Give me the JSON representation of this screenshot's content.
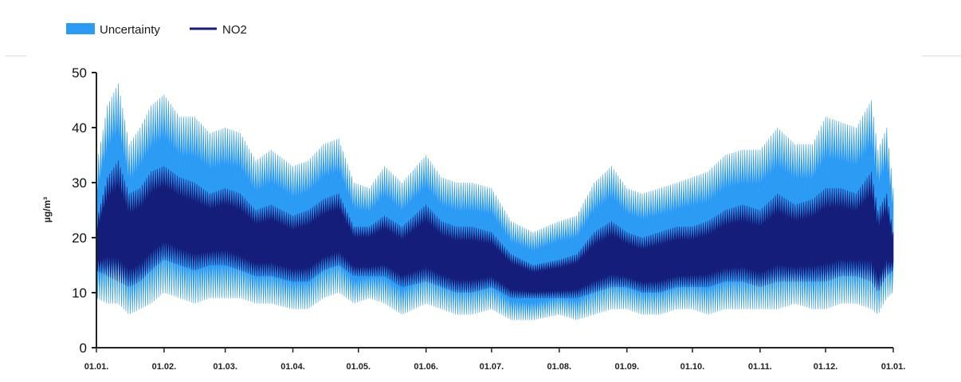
{
  "chart_data": {
    "type": "area",
    "title": "",
    "ylabel": "µg/m³",
    "xlabel": "",
    "ylim": [
      0,
      50
    ],
    "yticks": [
      "0",
      "10",
      "20",
      "30",
      "40",
      "50"
    ],
    "x_tick_labels": [
      "01.01.",
      "01.02.",
      "01.03.",
      "01.04.",
      "01.05.",
      "01.06.",
      "01.07.",
      "01.08.",
      "01.09.",
      "01.10.",
      "01.11.",
      "01.12.",
      "01.01."
    ],
    "x_tick_day": [
      0,
      31,
      59,
      90,
      120,
      151,
      181,
      212,
      243,
      273,
      304,
      334,
      365
    ],
    "grid": false,
    "legend_position": "top-left",
    "colors": {
      "uncertainty": "#2b9bf4",
      "no2": "#141e7a"
    },
    "series": [
      {
        "name": "Uncertainty",
        "kind": "band",
        "x_day": [
          0,
          5,
          10,
          15,
          20,
          25,
          31,
          38,
          45,
          52,
          59,
          66,
          73,
          80,
          90,
          97,
          104,
          111,
          118,
          125,
          132,
          140,
          151,
          158,
          165,
          172,
          181,
          190,
          200,
          212,
          220,
          228,
          236,
          243,
          250,
          258,
          266,
          273,
          280,
          288,
          296,
          304,
          312,
          320,
          328,
          334,
          341,
          348,
          355,
          358,
          362,
          365
        ],
        "lower": [
          9,
          8,
          8,
          6,
          7,
          8,
          10,
          9,
          8,
          9,
          9,
          9,
          8,
          8,
          7,
          7,
          9,
          10,
          8,
          9,
          8,
          6,
          8,
          7,
          6,
          6,
          7,
          5,
          5,
          6,
          5,
          6,
          7,
          7,
          6,
          6,
          7,
          7,
          6,
          7,
          7,
          7,
          7,
          8,
          7,
          7,
          8,
          8,
          7,
          6,
          9,
          10
        ],
        "upper": [
          33,
          44,
          48,
          37,
          40,
          44,
          46,
          42,
          42,
          39,
          40,
          39,
          34,
          36,
          33,
          34,
          37,
          38,
          30,
          29,
          33,
          30,
          35,
          31,
          30,
          30,
          29,
          23,
          21,
          23,
          24,
          30,
          33,
          29,
          28,
          29,
          30,
          31,
          32,
          35,
          36,
          36,
          40,
          37,
          37,
          42,
          41,
          40,
          45,
          36,
          40,
          29
        ]
      },
      {
        "name": "NO2",
        "kind": "line",
        "x_day": [
          0,
          5,
          10,
          15,
          20,
          25,
          31,
          38,
          45,
          52,
          59,
          66,
          73,
          80,
          90,
          97,
          104,
          111,
          118,
          125,
          132,
          140,
          151,
          158,
          165,
          172,
          181,
          190,
          200,
          212,
          220,
          228,
          236,
          243,
          250,
          258,
          266,
          273,
          280,
          288,
          296,
          304,
          312,
          320,
          328,
          334,
          341,
          348,
          355,
          358,
          362,
          365
        ],
        "lower": [
          14,
          13,
          12,
          11,
          12,
          14,
          16,
          15,
          14,
          15,
          15,
          14,
          13,
          13,
          12,
          12,
          14,
          15,
          13,
          13,
          13,
          11,
          12,
          11,
          10,
          10,
          11,
          9,
          9,
          9,
          9,
          10,
          11,
          11,
          10,
          10,
          11,
          11,
          11,
          12,
          12,
          11,
          12,
          12,
          12,
          12,
          13,
          13,
          12,
          10,
          13,
          14
        ],
        "upper": [
          23,
          31,
          34,
          28,
          29,
          32,
          33,
          31,
          30,
          28,
          29,
          28,
          25,
          26,
          24,
          25,
          27,
          28,
          22,
          22,
          24,
          22,
          26,
          23,
          22,
          22,
          21,
          17,
          15,
          16,
          17,
          21,
          23,
          21,
          20,
          21,
          22,
          22,
          23,
          25,
          26,
          25,
          28,
          26,
          27,
          29,
          29,
          28,
          32,
          25,
          28,
          21
        ]
      }
    ]
  }
}
